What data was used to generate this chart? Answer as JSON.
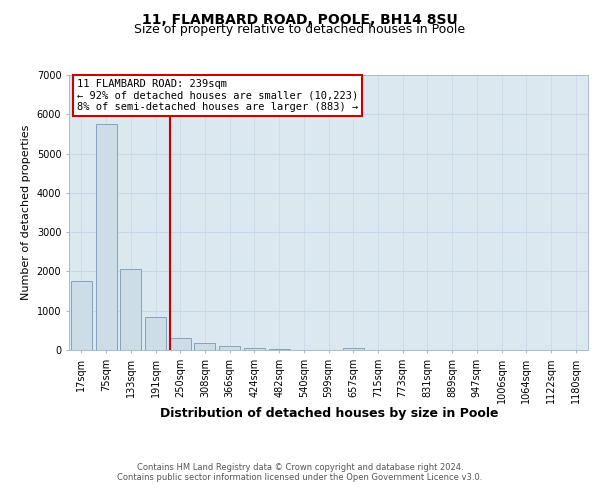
{
  "title_line1": "11, FLAMBARD ROAD, POOLE, BH14 8SU",
  "title_line2": "Size of property relative to detached houses in Poole",
  "xlabel": "Distribution of detached houses by size in Poole",
  "ylabel": "Number of detached properties",
  "bar_labels": [
    "17sqm",
    "75sqm",
    "133sqm",
    "191sqm",
    "250sqm",
    "308sqm",
    "366sqm",
    "424sqm",
    "482sqm",
    "540sqm",
    "599sqm",
    "657sqm",
    "715sqm",
    "773sqm",
    "831sqm",
    "889sqm",
    "947sqm",
    "1006sqm",
    "1064sqm",
    "1122sqm",
    "1180sqm"
  ],
  "bar_values": [
    1750,
    5750,
    2050,
    850,
    310,
    175,
    90,
    55,
    30,
    10,
    5,
    50,
    0,
    0,
    0,
    0,
    0,
    0,
    0,
    0,
    0
  ],
  "bar_color": "#ccdde8",
  "bar_edge_color": "#7799bb",
  "red_line_x": 3.57,
  "red_line_color": "#cc0000",
  "annotation_title": "11 FLAMBARD ROAD: 239sqm",
  "annotation_line2": "← 92% of detached houses are smaller (10,223)",
  "annotation_line3": "8% of semi-detached houses are larger (883) →",
  "annotation_box_color": "#cc0000",
  "annotation_bg": "#ffffff",
  "ylim": [
    0,
    7000
  ],
  "grid_color": "#c8d8e8",
  "background_color": "#dce8f0",
  "footer_line1": "Contains HM Land Registry data © Crown copyright and database right 2024.",
  "footer_line2": "Contains public sector information licensed under the Open Government Licence v3.0.",
  "title_fontsize": 10,
  "subtitle_fontsize": 9,
  "tick_fontsize": 7,
  "ylabel_fontsize": 8,
  "xlabel_fontsize": 9,
  "annotation_fontsize": 7.5
}
